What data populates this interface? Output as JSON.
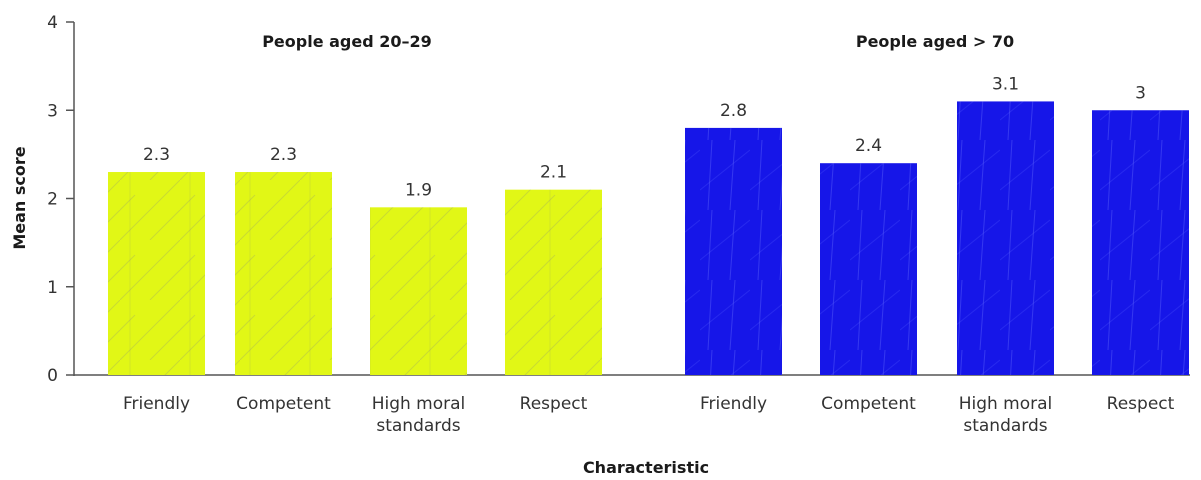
{
  "chart_data": {
    "type": "bar",
    "xlabel": "Characteristic",
    "ylabel": "Mean score",
    "ylim": [
      0,
      4
    ],
    "yticks": [
      "0",
      "1",
      "2",
      "3",
      "4"
    ],
    "grid": false,
    "groups": [
      {
        "name": "People aged 20–29",
        "color": "#e1f716",
        "categories": [
          "Friendly",
          "Competent",
          "High moral standards",
          "Respect"
        ],
        "values": [
          2.3,
          2.3,
          1.9,
          2.1
        ],
        "labels": [
          "2.3",
          "2.3",
          "1.9",
          "2.1"
        ]
      },
      {
        "name": "People aged > 70",
        "color": "#1616e8",
        "categories": [
          "Friendly",
          "Competent",
          "High moral standards",
          "Respect"
        ],
        "values": [
          2.8,
          2.4,
          3.1,
          3
        ],
        "labels": [
          "2.8",
          "2.4",
          "3.1",
          "3"
        ]
      }
    ]
  }
}
